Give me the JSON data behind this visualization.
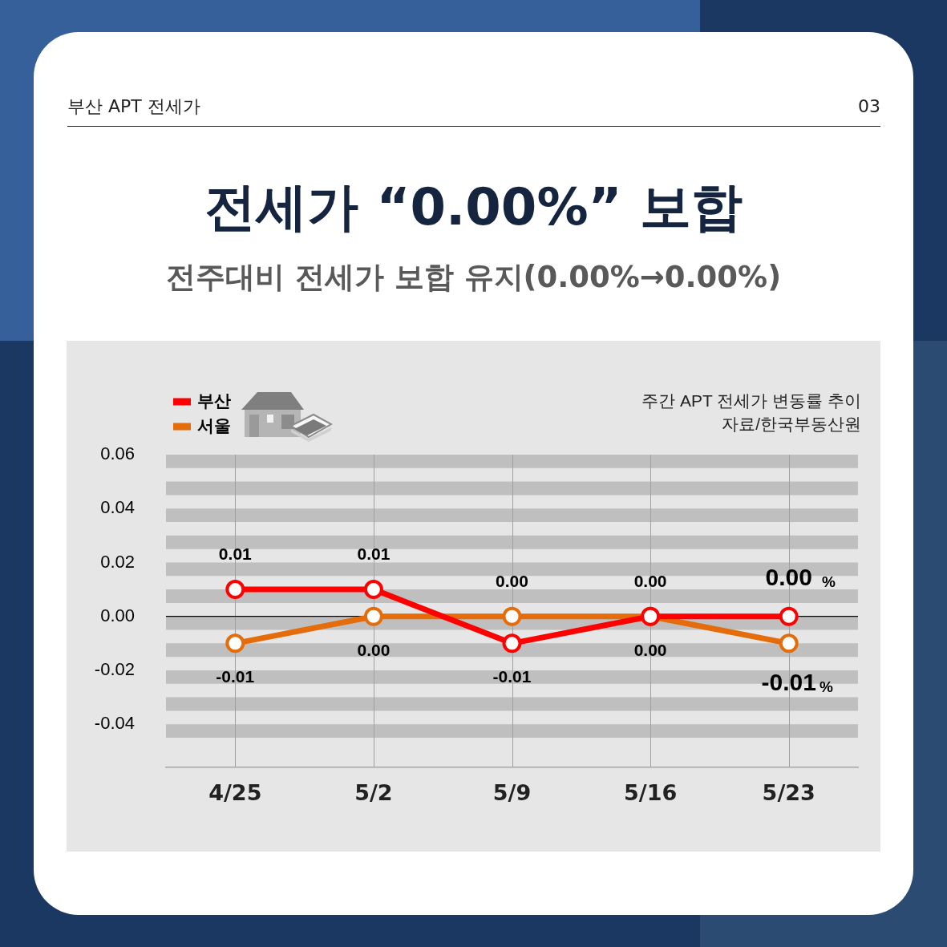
{
  "chart_data": {
    "type": "line",
    "title": "전세가 “0.00%” 보합",
    "subtitle": "전주대비 전세가 보합 유지(0.00%→0.00%)",
    "annotations": [
      "부산 APT 전세가",
      "03",
      "주간 APT 전세가 변동률 추이",
      "자료/한국부동산원"
    ],
    "categories": [
      "4/25",
      "5/2",
      "5/9",
      "5/16",
      "5/23"
    ],
    "series": [
      {
        "name": "부산",
        "color": "#ff0000",
        "values": [
          0.01,
          0.01,
          -0.01,
          0,
          0
        ],
        "value_labels": [
          "0.01",
          "0.01",
          "-0.01",
          "0.00",
          "0.00 %"
        ]
      },
      {
        "name": "서울",
        "color": "#e46c0a",
        "values": [
          -0.01,
          0,
          0,
          0,
          -0.01
        ],
        "value_labels": [
          "-0.01",
          "0.00",
          "0.00",
          "0.00",
          "-0.01%"
        ]
      }
    ],
    "ylim": [
      -0.056,
      0.06
    ],
    "yticks": [
      -0.04,
      -0.02,
      {
        "value": 0,
        "label": "0.00"
      },
      0.02,
      0.04,
      0.06
    ],
    "ref_lines": [
      {
        "axis": "y",
        "value": 0,
        "color": "#000000"
      }
    ],
    "bands": [
      {
        "axis": "y",
        "from": 0.055,
        "to": 0.06,
        "color": "#bfbfbf"
      },
      {
        "axis": "y",
        "from": 0.045,
        "to": 0.05,
        "color": "#bfbfbf"
      },
      {
        "axis": "y",
        "from": 0.035,
        "to": 0.04,
        "color": "#bfbfbf"
      },
      {
        "axis": "y",
        "from": 0.025,
        "to": 0.03,
        "color": "#bfbfbf"
      },
      {
        "axis": "y",
        "from": 0.015,
        "to": 0.02,
        "color": "#bfbfbf"
      },
      {
        "axis": "y",
        "from": 0.005,
        "to": 0.01,
        "color": "#bfbfbf"
      },
      {
        "axis": "y",
        "from": -0.005,
        "to": 0,
        "color": "#bfbfbf"
      },
      {
        "axis": "y",
        "from": -0.015,
        "to": -0.01,
        "color": "#bfbfbf"
      },
      {
        "axis": "y",
        "from": -0.025,
        "to": -0.02,
        "color": "#bfbfbf"
      },
      {
        "axis": "y",
        "from": -0.035,
        "to": -0.03,
        "color": "#bfbfbf"
      },
      {
        "axis": "y",
        "from": -0.045,
        "to": -0.04,
        "color": "#bfbfbf"
      }
    ],
    "grid": "x",
    "legend": "top left",
    "marker": "circle"
  }
}
